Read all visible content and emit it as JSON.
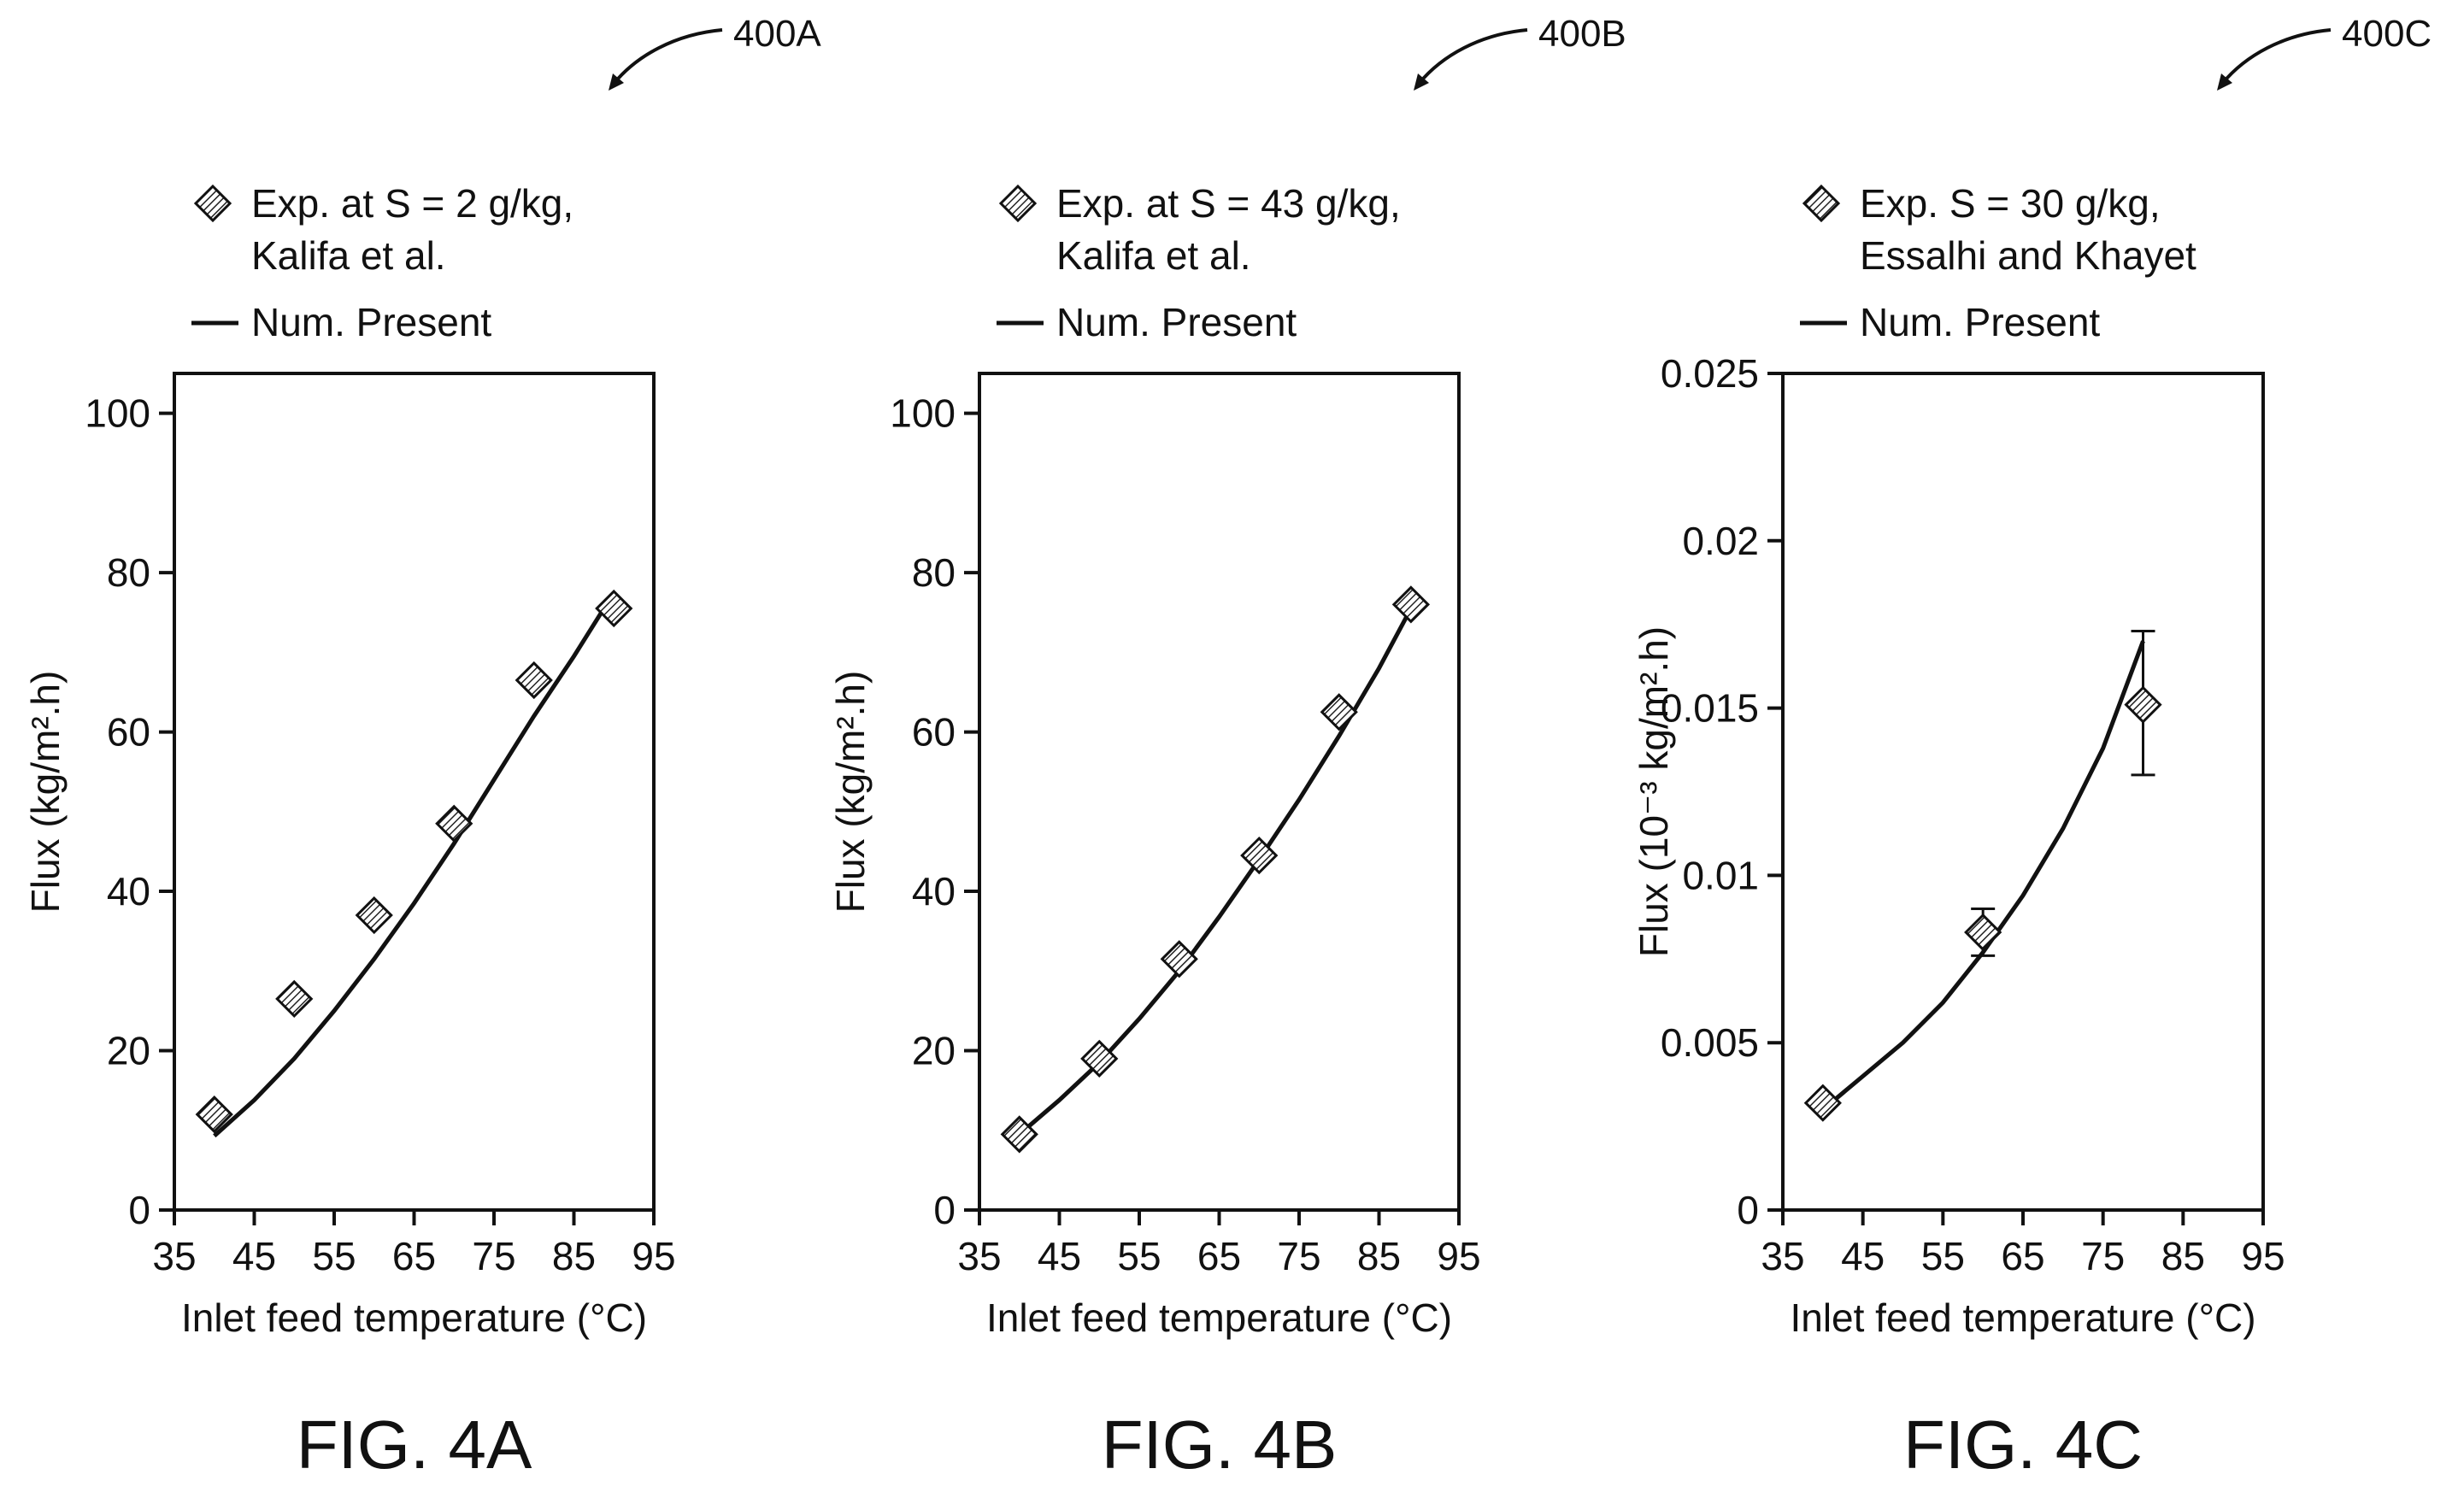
{
  "chart_data": [
    {
      "type": "scatter",
      "ref_label": "400A",
      "figure_label": "FIG. 4A",
      "xlabel": "Inlet feed temperature (°C)",
      "ylabel": "Flux (kg/m².h)",
      "xlim": [
        35,
        95
      ],
      "ylim": [
        0,
        105
      ],
      "xticks": [
        35,
        45,
        55,
        65,
        75,
        85,
        95
      ],
      "yticks": [
        0,
        20,
        40,
        60,
        80,
        100
      ],
      "ytick_labels": [
        "0",
        "20",
        "40",
        "60",
        "80",
        "100"
      ],
      "legend": [
        {
          "kind": "marker",
          "lines": [
            "Exp. at S = 2 g/kg,",
            "Kalifa et al."
          ]
        },
        {
          "kind": "line",
          "lines": [
            "Num. Present"
          ]
        }
      ],
      "series": [
        {
          "name": "Exp. at S = 2 g/kg, Kalifa et al.",
          "kind": "marker",
          "x": [
            40,
            50,
            60,
            70,
            80,
            90
          ],
          "y": [
            12,
            26.5,
            37,
            48.5,
            66.5,
            75.5
          ]
        },
        {
          "name": "Num. Present",
          "kind": "line",
          "x": [
            40,
            45,
            50,
            55,
            60,
            65,
            70,
            75,
            80,
            85,
            90
          ],
          "y": [
            9.3,
            13.8,
            19,
            25,
            31.5,
            38.5,
            46,
            54,
            62,
            69.5,
            77.5
          ]
        }
      ]
    },
    {
      "type": "scatter",
      "ref_label": "400B",
      "figure_label": "FIG. 4B",
      "xlabel": "Inlet feed temperature (°C)",
      "ylabel": "Flux (kg/m².h)",
      "xlim": [
        35,
        95
      ],
      "ylim": [
        0,
        105
      ],
      "xticks": [
        35,
        45,
        55,
        65,
        75,
        85,
        95
      ],
      "yticks": [
        0,
        20,
        40,
        60,
        80,
        100
      ],
      "ytick_labels": [
        "0",
        "20",
        "40",
        "60",
        "80",
        "100"
      ],
      "legend": [
        {
          "kind": "marker",
          "lines": [
            "Exp. at S = 43 g/kg,",
            "Kalifa et al."
          ]
        },
        {
          "kind": "line",
          "lines": [
            "Num. Present"
          ]
        }
      ],
      "series": [
        {
          "name": "Exp. at S = 43 g/kg, Kalifa et al.",
          "kind": "marker",
          "x": [
            40,
            50,
            60,
            70,
            80,
            89
          ],
          "y": [
            9.5,
            19,
            31.5,
            44.5,
            62.5,
            76
          ]
        },
        {
          "name": "Num. Present",
          "kind": "line",
          "x": [
            40,
            45,
            50,
            55,
            60,
            65,
            70,
            75,
            80,
            85,
            89
          ],
          "y": [
            9.5,
            13.8,
            18.5,
            24,
            30,
            36.8,
            44,
            51.5,
            59.5,
            68,
            75.5
          ]
        }
      ]
    },
    {
      "type": "scatter",
      "ref_label": "400C",
      "figure_label": "FIG. 4C",
      "xlabel": "Inlet feed temperature (°C)",
      "ylabel": "Flux (10⁻³ kg/m².h)",
      "xlim": [
        35,
        95
      ],
      "ylim": [
        0,
        0.025
      ],
      "xticks": [
        35,
        45,
        55,
        65,
        75,
        85,
        95
      ],
      "yticks": [
        0,
        0.005,
        0.01,
        0.015,
        0.02,
        0.025
      ],
      "ytick_labels": [
        "0",
        "0.005",
        "0.01",
        "0.015",
        "0.02",
        "0.025"
      ],
      "legend": [
        {
          "kind": "marker",
          "lines": [
            "Exp. S = 30 g/kg,",
            "Essalhi and Khayet"
          ]
        },
        {
          "kind": "line",
          "lines": [
            "Num. Present"
          ]
        }
      ],
      "series": [
        {
          "name": "Exp. S = 30 g/kg, Essalhi and Khayet",
          "kind": "marker",
          "x": [
            40,
            60,
            80
          ],
          "y": [
            0.0032,
            0.0083,
            0.0151
          ],
          "error_low": [
            0.0032,
            0.0076,
            0.013
          ],
          "error_high": [
            0.0032,
            0.009,
            0.0173
          ]
        },
        {
          "name": "Num. Present",
          "kind": "line",
          "x": [
            40,
            45,
            50,
            55,
            60,
            65,
            70,
            75,
            80
          ],
          "y": [
            0.003,
            0.004,
            0.005,
            0.0062,
            0.0077,
            0.0094,
            0.0114,
            0.0138,
            0.017
          ]
        }
      ]
    }
  ]
}
